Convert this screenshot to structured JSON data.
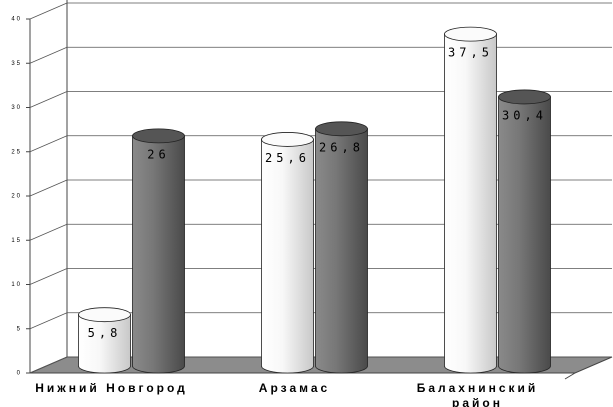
{
  "chart_data": {
    "type": "bar",
    "categories": [
      "Нижний Новгород",
      "Арзамас",
      "Балахнинский район"
    ],
    "series": [
      {
        "color": "#f2f2f2",
        "values": [
          5.8,
          25.6,
          37.5
        ],
        "value_labels": [
          "5,8",
          "25,6",
          "37,5"
        ]
      },
      {
        "color": "#707070",
        "values": [
          26,
          26.8,
          30.4
        ],
        "value_labels": [
          "26",
          "26,8",
          "30,4"
        ]
      }
    ],
    "ylim": [
      0,
      40
    ],
    "yticks": [
      0,
      5,
      10,
      15,
      20,
      25,
      30,
      35,
      40
    ],
    "grid": true
  }
}
